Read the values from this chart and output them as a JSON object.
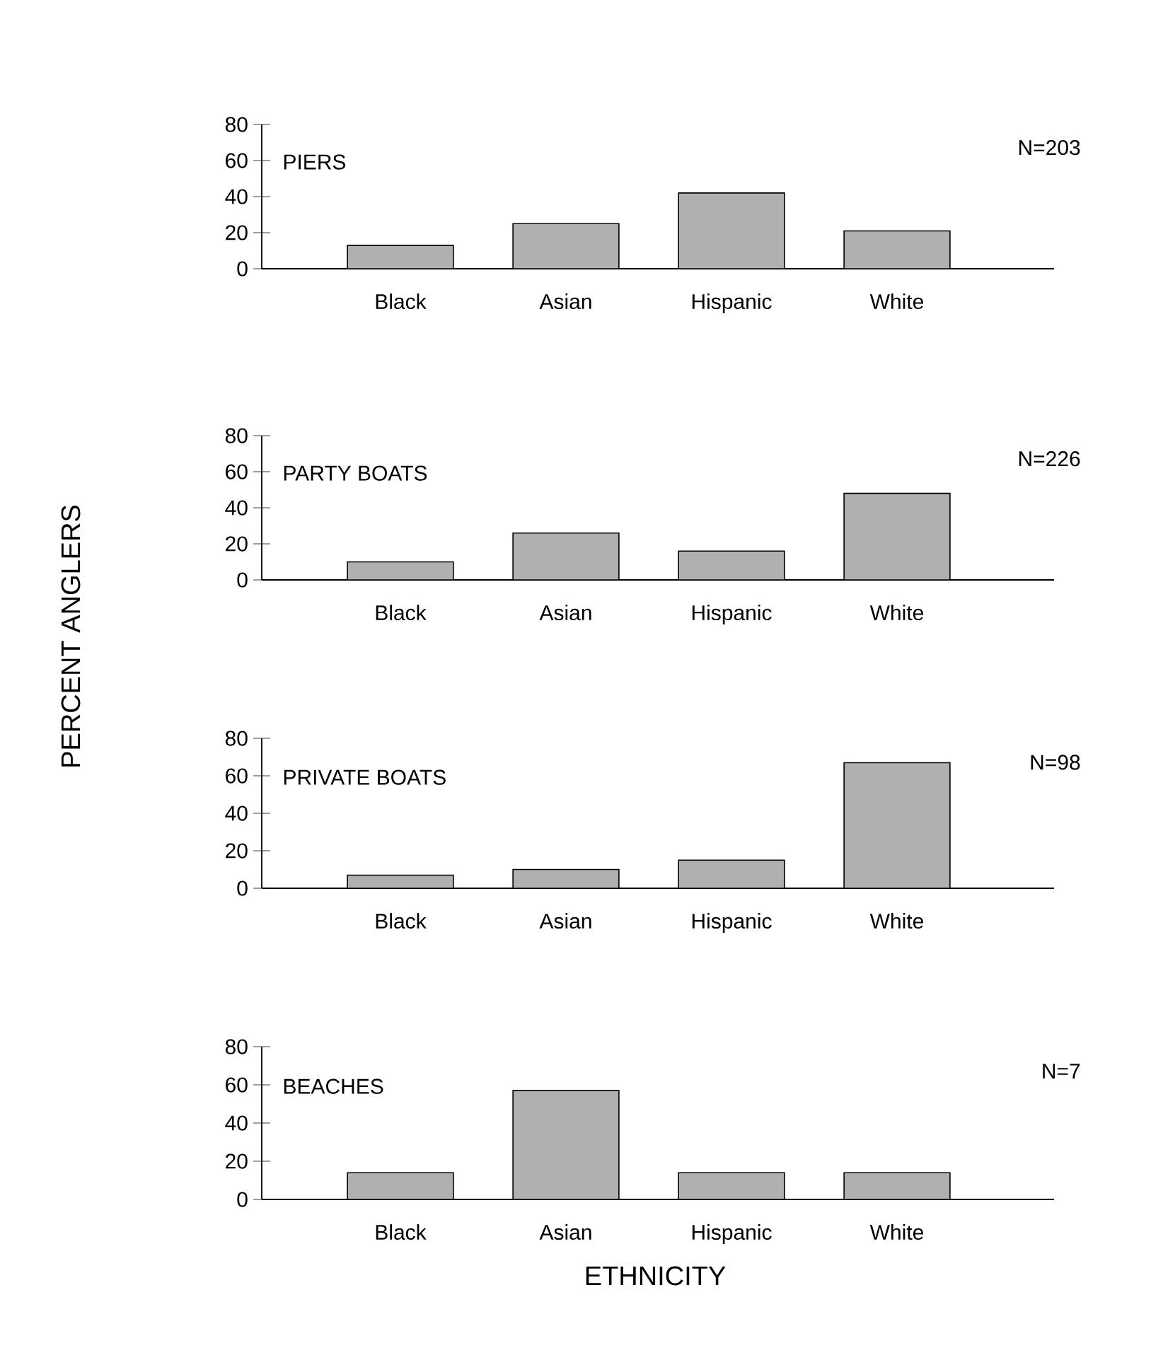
{
  "chart_data": [
    {
      "type": "bar",
      "title": "PIERS",
      "categories": [
        "Black",
        "Asian",
        "Hispanic",
        "White"
      ],
      "values": [
        13,
        25,
        42,
        21
      ],
      "color": "#b0b0b0",
      "ylim": [
        0,
        80
      ],
      "yticks": [
        0,
        20,
        40,
        60,
        80
      ],
      "annotations": [
        "N=203"
      ]
    },
    {
      "type": "bar",
      "title": "PARTY BOATS",
      "ylabel": "PERCENT ANGLERS",
      "categories": [
        "Black",
        "Asian",
        "Hispanic",
        "White"
      ],
      "values": [
        10,
        26,
        16,
        48
      ],
      "color": "#b0b0b0",
      "ylim": [
        0,
        80
      ],
      "yticks": [
        0,
        20,
        40,
        60,
        80
      ],
      "annotations": [
        "N=226"
      ]
    },
    {
      "type": "bar",
      "title": "PRIVATE BOATS",
      "categories": [
        "Black",
        "Asian",
        "Hispanic",
        "White"
      ],
      "values": [
        7,
        10,
        15,
        67
      ],
      "color": "#b0b0b0",
      "ylim": [
        0,
        80
      ],
      "yticks": [
        0,
        20,
        40,
        60,
        80
      ],
      "annotations": [
        "N=98"
      ]
    },
    {
      "type": "bar",
      "title": "BEACHES",
      "xlabel": "ETHNICITY",
      "categories": [
        "Black",
        "Asian",
        "Hispanic",
        "White"
      ],
      "values": [
        14,
        57,
        14,
        14
      ],
      "color": "#b0b0b0",
      "ylim": [
        0,
        80
      ],
      "yticks": [
        0,
        20,
        40,
        60,
        80
      ],
      "annotations": [
        "N=7"
      ]
    }
  ]
}
